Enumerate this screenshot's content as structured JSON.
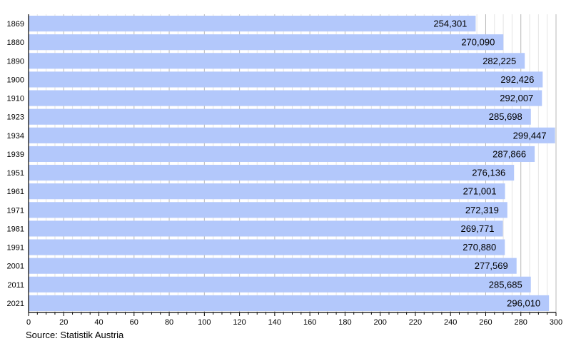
{
  "chart_data": {
    "type": "bar",
    "orientation": "horizontal",
    "categories": [
      "1869",
      "1880",
      "1890",
      "1900",
      "1910",
      "1923",
      "1934",
      "1939",
      "1951",
      "1961",
      "1971",
      "1981",
      "1991",
      "2001",
      "2011",
      "2021"
    ],
    "values": [
      254301,
      270090,
      282225,
      292426,
      292007,
      285698,
      299447,
      287866,
      276136,
      271001,
      272319,
      269771,
      270880,
      277569,
      285685,
      296010
    ],
    "value_labels": [
      "254,301",
      "270,090",
      "282,225",
      "292,426",
      "292,007",
      "285,698",
      "299,447",
      "287,866",
      "276,136",
      "271,001",
      "272,319",
      "269,771",
      "270,880",
      "277,569",
      "285,685",
      "296,010"
    ],
    "xlim": [
      0,
      300
    ],
    "x_unit_divisor": 1000,
    "xticks": [
      0,
      20,
      40,
      60,
      80,
      100,
      120,
      140,
      160,
      180,
      200,
      220,
      240,
      260,
      280,
      300
    ],
    "grid": true,
    "bar_color": "#b3c8fb",
    "title": "",
    "xlabel": "",
    "ylabel": ""
  },
  "source": "Source: Statistik Austria"
}
